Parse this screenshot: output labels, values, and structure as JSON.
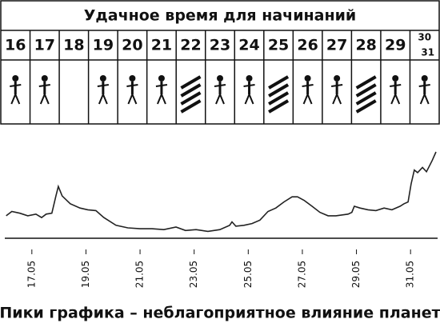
{
  "calendar": {
    "title": "Удачное время для начинаний",
    "days": [
      "16",
      "17",
      "18",
      "19",
      "20",
      "21",
      "22",
      "23",
      "24",
      "25",
      "26",
      "27",
      "28",
      "29",
      "30",
      "31"
    ]
  },
  "chart_data": {
    "type": "line",
    "caption": "Пики графика – неблагоприятное влияние планет",
    "x": [
      16.05,
      16.26,
      16.56,
      16.85,
      17.15,
      17.36,
      17.53,
      17.74,
      17.89,
      17.98,
      18.12,
      18.42,
      18.78,
      19.07,
      19.37,
      19.66,
      20.11,
      20.55,
      21.0,
      21.44,
      21.88,
      22.33,
      22.68,
      23.07,
      23.51,
      23.95,
      24.31,
      24.4,
      24.54,
      24.84,
      25.14,
      25.43,
      25.73,
      26.02,
      26.32,
      26.62,
      26.82,
      27.06,
      27.36,
      27.65,
      27.95,
      28.24,
      28.69,
      28.83,
      28.92,
      29.13,
      29.43,
      29.72,
      30.02,
      30.31,
      30.61,
      30.76,
      30.91,
      31.02,
      31.14,
      31.26,
      31.44,
      31.59,
      31.8,
      31.94
    ],
    "values": [
      26,
      31,
      29,
      26,
      28,
      24,
      28,
      29,
      49,
      60,
      49,
      40,
      35,
      33,
      32,
      24,
      15,
      12,
      11,
      11,
      10,
      13,
      9,
      10,
      8,
      10,
      15,
      19,
      14,
      15,
      17,
      21,
      31,
      35,
      42,
      48,
      48,
      44,
      37,
      30,
      26,
      26,
      28,
      30,
      37,
      35,
      33,
      32,
      35,
      33,
      37,
      40,
      42,
      63,
      79,
      76,
      82,
      77,
      90,
      100
    ],
    "color": "#222222",
    "xlim": [
      16,
      32
    ],
    "ylim": [
      0,
      100
    ],
    "xticks": [
      {
        "value": 17,
        "label": "17.05"
      },
      {
        "value": 19,
        "label": "19.05"
      },
      {
        "value": 21,
        "label": "21.05"
      },
      {
        "value": 23,
        "label": "23.05"
      },
      {
        "value": 25,
        "label": "25.05"
      },
      {
        "value": 27,
        "label": "27.05"
      },
      {
        "value": 29,
        "label": "29.05"
      },
      {
        "value": 31,
        "label": "31.05"
      }
    ]
  }
}
